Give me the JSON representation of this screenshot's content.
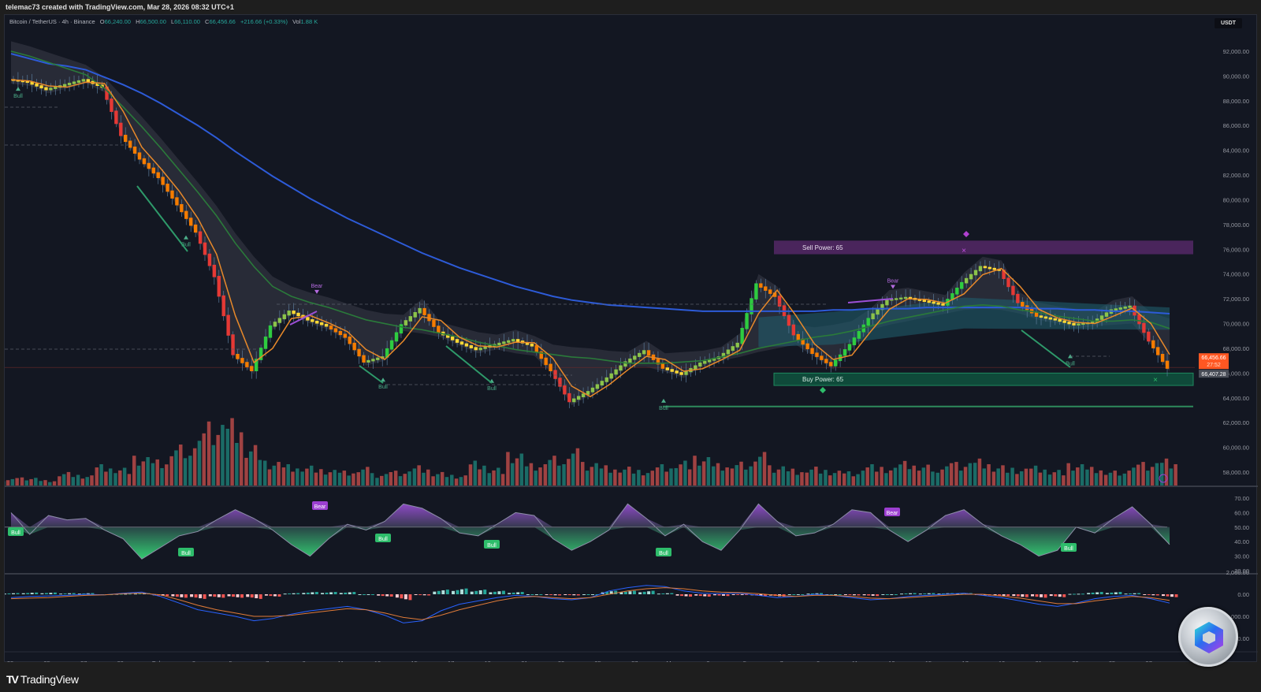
{
  "header": {
    "attribution": "telemac73 created with TradingView.com, Mar 28, 2026 08:32 UTC+1"
  },
  "legend": {
    "symbol": "Bitcoin / TetherUS · 4h · Binance",
    "open_label": "O",
    "open": "66,240.00",
    "high_label": "H",
    "high": "66,500.00",
    "low_label": "L",
    "low": "66,110.00",
    "close_label": "C",
    "close": "66,456.66",
    "change": "+216.66 (+0.33%)",
    "vol_label": "Vol",
    "vol": "1.88 K"
  },
  "currency_button": "USDT",
  "price_axis": {
    "ticks": [
      "92,000.00",
      "90,000.00",
      "88,000.00",
      "86,000.00",
      "84,000.00",
      "82,000.00",
      "80,000.00",
      "78,000.00",
      "76,000.00",
      "74,000.00",
      "72,000.00",
      "70,000.00",
      "68,000.00",
      "66,000.00",
      "64,000.00",
      "62,000.00",
      "60,000.00",
      "58,000.00"
    ],
    "last_price": "66,456.66",
    "countdown": "27:52",
    "prev_close": "66,407.28"
  },
  "rsi_axis": {
    "ticks": [
      "70.00",
      "60.00",
      "50.00",
      "40.00",
      "30.00",
      "20.00"
    ]
  },
  "macd_axis": {
    "ticks": [
      "2,000.00",
      "0.00",
      "-2,000.00",
      "-4,000.00"
    ]
  },
  "time_axis": {
    "labels": [
      "23",
      "25",
      "27",
      "29",
      "Feb",
      "3",
      "5",
      "7",
      "9",
      "11",
      "13",
      "15",
      "17",
      "19",
      "21",
      "23",
      "25",
      "27",
      "Mar",
      "3",
      "5",
      "7",
      "9",
      "11",
      "13",
      "15",
      "17",
      "19",
      "21",
      "23",
      "25",
      "27"
    ]
  },
  "annotations": {
    "sell_power": "Sell Power: 65",
    "buy_power": "Buy Power: 65",
    "bull": "Bull",
    "bear": "Bear"
  },
  "colors": {
    "background": "#131722",
    "bull": "#26a69a",
    "bear": "#ef5350",
    "ema_blue": "#2962ff",
    "ema_green": "#2e7d32",
    "ema_orange": "#f57c00",
    "sell_zone": "#4a235a",
    "buy_zone": "#0e4a3a",
    "last_price": "#ff5722",
    "rsi_bull_label": "#2ebd6b",
    "rsi_bear_label": "#9c3fd1"
  },
  "footer": {
    "brand": "TradingView"
  },
  "chart_data": {
    "type": "candlestick",
    "title": "Bitcoin / TetherUS · 4h · Binance",
    "ylim": [
      57000,
      93500
    ],
    "x_dates": [
      "Jan 23",
      "Jan 25",
      "Jan 27",
      "Jan 29",
      "Feb 1",
      "Feb 3",
      "Feb 5",
      "Feb 7",
      "Feb 9",
      "Feb 11",
      "Feb 13",
      "Feb 15",
      "Feb 17",
      "Feb 19",
      "Feb 21",
      "Feb 23",
      "Feb 25",
      "Feb 27",
      "Mar 1",
      "Mar 3",
      "Mar 5",
      "Mar 7",
      "Mar 9",
      "Mar 11",
      "Mar 13",
      "Mar 15",
      "Mar 17",
      "Mar 19",
      "Mar 21",
      "Mar 23",
      "Mar 25",
      "Mar 27"
    ],
    "close_path": [
      89700,
      89500,
      88900,
      89300,
      89700,
      89100,
      85200,
      83300,
      81800,
      79600,
      77400,
      73800,
      67500,
      66200,
      69800,
      71000,
      70300,
      69800,
      68900,
      66900,
      67300,
      69900,
      71200,
      69300,
      68500,
      67900,
      68300,
      68700,
      68200,
      66200,
      63700,
      64500,
      65600,
      66900,
      67800,
      66400,
      65900,
      66800,
      67300,
      68400,
      73200,
      72200,
      69100,
      67600,
      66600,
      68300,
      70400,
      71900,
      72100,
      71800,
      71500,
      73300,
      74600,
      74300,
      71700,
      70600,
      70300,
      69900,
      70100,
      71100,
      71400,
      68600,
      66400
    ],
    "ema_200": [
      91800,
      91400,
      91000,
      90800,
      90500,
      89900,
      89300,
      88600,
      87800,
      86900,
      86000,
      85000,
      83900,
      82900,
      81900,
      81000,
      80100,
      79300,
      78500,
      77800,
      77100,
      76400,
      75700,
      75100,
      74500,
      74000,
      73500,
      73000,
      72600,
      72200,
      71900,
      71700,
      71500,
      71400,
      71300,
      71200,
      71100,
      71000,
      71000,
      71000,
      71000,
      71000,
      71000,
      71000,
      71100,
      71100,
      71200,
      71200,
      71200,
      71300,
      71300,
      71300,
      71300,
      71300,
      71300,
      71200,
      71200,
      71100,
      71100,
      71000,
      71000,
      70900,
      70800
    ],
    "ema_50": [
      92000,
      91600,
      91100,
      90600,
      90100,
      89000,
      87500,
      85900,
      84200,
      82400,
      80600,
      78700,
      76500,
      74600,
      73000,
      72200,
      71700,
      71300,
      70800,
      70300,
      70000,
      69700,
      69500,
      69200,
      68900,
      68500,
      68200,
      67900,
      67700,
      67500,
      67300,
      67200,
      67000,
      66800,
      66800,
      66800,
      66900,
      67000,
      67300,
      67600,
      68000,
      68300,
      68600,
      68900,
      69100,
      69400,
      69800,
      70200,
      70500,
      70800,
      71100,
      71400,
      71500,
      71400,
      71100,
      70900,
      70600,
      70400,
      70200,
      70200,
      70300,
      70100,
      69600
    ],
    "volume_relative": [
      0.1,
      0.12,
      0.08,
      0.2,
      0.15,
      0.3,
      0.25,
      0.4,
      0.35,
      0.55,
      0.7,
      0.95,
      1.0,
      0.6,
      0.35,
      0.3,
      0.28,
      0.22,
      0.2,
      0.25,
      0.18,
      0.22,
      0.3,
      0.2,
      0.15,
      0.35,
      0.25,
      0.45,
      0.3,
      0.4,
      0.5,
      0.35,
      0.3,
      0.28,
      0.22,
      0.3,
      0.35,
      0.4,
      0.3,
      0.32,
      0.45,
      0.3,
      0.25,
      0.28,
      0.22,
      0.2,
      0.3,
      0.25,
      0.33,
      0.28,
      0.3,
      0.35,
      0.4,
      0.3,
      0.25,
      0.28,
      0.22,
      0.3,
      0.25,
      0.2,
      0.28,
      0.35,
      0.4
    ],
    "rsi": [
      60,
      45,
      58,
      55,
      56,
      48,
      42,
      28,
      36,
      44,
      47,
      55,
      62,
      56,
      48,
      38,
      30,
      42,
      52,
      48,
      54,
      66,
      63,
      56,
      46,
      44,
      52,
      60,
      58,
      42,
      34,
      40,
      48,
      66,
      56,
      44,
      52,
      40,
      34,
      48,
      66,
      54,
      44,
      46,
      52,
      62,
      60,
      48,
      40,
      48,
      58,
      62,
      52,
      44,
      38,
      30,
      34,
      50,
      46,
      56,
      64,
      52,
      38
    ],
    "macd_line": [
      -300,
      -200,
      -150,
      -100,
      0,
      -50,
      100,
      200,
      -200,
      -800,
      -1400,
      -1700,
      -2000,
      -2400,
      -2200,
      -1800,
      -1500,
      -1300,
      -1100,
      -1400,
      -1900,
      -2600,
      -2400,
      -1500,
      -900,
      -600,
      -300,
      -100,
      -200,
      -400,
      -500,
      -300,
      300,
      600,
      800,
      700,
      300,
      100,
      50,
      100,
      -100,
      -300,
      -200,
      0,
      -100,
      -300,
      -500,
      -400,
      -200,
      -100,
      0,
      100,
      -100,
      -300,
      -600,
      -900,
      -1100,
      -800,
      -400,
      -200,
      -100,
      -400,
      -800
    ],
    "signal_line": [
      -400,
      -350,
      -300,
      -200,
      -100,
      -50,
      50,
      100,
      -50,
      -500,
      -1000,
      -1400,
      -1700,
      -2000,
      -2000,
      -1900,
      -1700,
      -1500,
      -1300,
      -1400,
      -1700,
      -2100,
      -2300,
      -1900,
      -1400,
      -1000,
      -600,
      -300,
      -200,
      -300,
      -400,
      -300,
      0,
      300,
      500,
      600,
      500,
      300,
      200,
      150,
      50,
      -100,
      -200,
      -100,
      -100,
      -200,
      -350,
      -400,
      -300,
      -200,
      -100,
      0,
      0,
      -150,
      -350,
      -600,
      -850,
      -850,
      -600,
      -400,
      -200,
      -300,
      -550
    ]
  }
}
